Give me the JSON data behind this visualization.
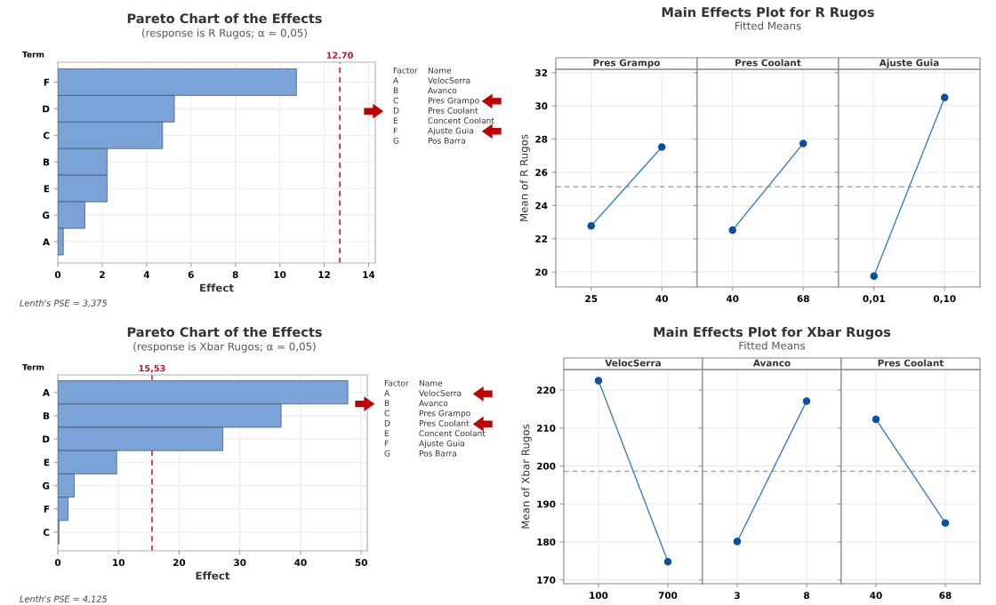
{
  "chart_data": [
    {
      "type": "bar",
      "orientation": "horizontal",
      "title": "Pareto Chart of the Effects",
      "subtitle": "(response is R Rugos; α = 0,05)",
      "xlabel": "Effect",
      "ylabel": "Term",
      "categories": [
        "F",
        "D",
        "C",
        "B",
        "E",
        "G",
        "A"
      ],
      "values": [
        10.75,
        5.25,
        4.72,
        2.22,
        2.22,
        1.22,
        0.25
      ],
      "color": "#7ba3d8",
      "xlim": [
        0,
        14.3
      ],
      "xticks": [
        0,
        2,
        4,
        6,
        8,
        10,
        12,
        14
      ],
      "grid": true,
      "ref_lines": [
        {
          "axis": "x",
          "value": 12.7,
          "label": "12.70",
          "color": "#c8102e",
          "line_style": "dashed"
        }
      ],
      "annotations": [
        "Factor",
        "Name",
        "A",
        "VelocSerra",
        "B",
        "Avanco",
        "C",
        "Pres Grampo",
        "D",
        "Pres Coolant",
        "E",
        "Concent Coolant",
        "F",
        "Ajuste Guia",
        "G",
        "Pos Barra",
        "Lenth's PSE = 3,375"
      ]
    },
    {
      "type": "other",
      "title": "Main Effects Plot for R Rugos",
      "subtitle": "Fitted Means"
    },
    {
      "type": "line",
      "title": "Pres Grampo",
      "ylabel": "Mean of R Rugos",
      "categories": [
        "25",
        "40"
      ],
      "series": [
        {
          "color": "#3d7cc4",
          "values": [
            22.78,
            27.52
          ]
        }
      ],
      "marker": "circle",
      "grid": true,
      "ylim": [
        19.1,
        32.2
      ],
      "yticks": [
        20,
        22,
        24,
        26,
        28,
        30,
        32
      ],
      "ref_lines": [
        {
          "axis": "y",
          "value": 25.13,
          "color": "#a8a8a8",
          "line_style": "dashed"
        }
      ]
    },
    {
      "type": "line",
      "title": "Pres Coolant",
      "categories": [
        "40",
        "68"
      ],
      "tick_labels": "x",
      "series": [
        {
          "color": "#3d7cc4",
          "values": [
            22.52,
            27.74
          ]
        }
      ],
      "marker": "circle",
      "grid": true,
      "ylim": [
        19.1,
        32.2
      ],
      "yticks": [
        20,
        22,
        24,
        26,
        28,
        30,
        32
      ],
      "ref_lines": [
        {
          "axis": "y",
          "value": 25.13,
          "color": "#a8a8a8",
          "line_style": "dashed"
        }
      ]
    },
    {
      "type": "line",
      "title": "Ajuste Guia",
      "categories": [
        "0,01",
        "0,10"
      ],
      "tick_labels": "x",
      "series": [
        {
          "color": "#3d7cc4",
          "values": [
            19.76,
            30.5
          ]
        }
      ],
      "marker": "circle",
      "grid": true,
      "ylim": [
        19.1,
        32.2
      ],
      "yticks": [
        20,
        22,
        24,
        26,
        28,
        30,
        32
      ],
      "ref_lines": [
        {
          "axis": "y",
          "value": 25.13,
          "color": "#a8a8a8",
          "line_style": "dashed"
        }
      ]
    },
    {
      "type": "bar",
      "orientation": "horizontal",
      "title": "Pareto Chart of the Effects",
      "subtitle": "(response is Xbar Rugos; α = 0,05)",
      "xlabel": "Effect",
      "ylabel": "Term",
      "categories": [
        "A",
        "B",
        "D",
        "E",
        "G",
        "F",
        "C"
      ],
      "values": [
        47.8,
        36.8,
        27.2,
        9.7,
        2.7,
        1.7,
        0.2
      ],
      "color": "#7ba3d8",
      "xlim": [
        0,
        51
      ],
      "xticks": [
        0,
        10,
        20,
        30,
        40,
        50
      ],
      "grid": true,
      "ref_lines": [
        {
          "axis": "x",
          "value": 15.53,
          "label": "15,53",
          "color": "#c8102e",
          "line_style": "dashed"
        }
      ],
      "annotations": [
        "Factor",
        "Name",
        "A",
        "VelocSerra",
        "B",
        "Avanco",
        "C",
        "Pres Grampo",
        "D",
        "Pres Coolant",
        "E",
        "Concent Coolant",
        "F",
        "Ajuste Guia",
        "G",
        "Pos Barra",
        "Lenth's PSE = 4,125"
      ]
    },
    {
      "type": "other",
      "title": "Main Effects Plot for Xbar Rugos",
      "subtitle": "Fitted Means"
    },
    {
      "type": "line",
      "title": "VelocSerra",
      "ylabel": "Mean of Xbar Rugos",
      "categories": [
        "100",
        "700"
      ],
      "series": [
        {
          "color": "#3d7cc4",
          "values": [
            222.5,
            174.8
          ]
        }
      ],
      "marker": "circle",
      "grid": true,
      "ylim": [
        169.0,
        225.4
      ],
      "yticks": [
        170,
        180,
        190,
        200,
        210,
        220
      ],
      "ref_lines": [
        {
          "axis": "y",
          "value": 198.6,
          "color": "#a8a8a8",
          "line_style": "dashed"
        }
      ]
    },
    {
      "type": "line",
      "title": "Avanco",
      "categories": [
        "3",
        "8"
      ],
      "tick_labels": "x",
      "series": [
        {
          "color": "#3d7cc4",
          "values": [
            180.1,
            217.1
          ]
        }
      ],
      "marker": "circle",
      "grid": true,
      "ylim": [
        169.0,
        225.4
      ],
      "yticks": [
        170,
        180,
        190,
        200,
        210,
        220
      ],
      "ref_lines": [
        {
          "axis": "y",
          "value": 198.6,
          "color": "#a8a8a8",
          "line_style": "dashed"
        }
      ]
    },
    {
      "type": "line",
      "title": "Pres Coolant",
      "categories": [
        "40",
        "68"
      ],
      "tick_labels": "x",
      "series": [
        {
          "color": "#3d7cc4",
          "values": [
            212.3,
            185.0
          ]
        }
      ],
      "marker": "circle",
      "grid": true,
      "ylim": [
        169.0,
        225.4
      ],
      "yticks": [
        170,
        180,
        190,
        200,
        210,
        220
      ],
      "ref_lines": [
        {
          "axis": "y",
          "value": 198.6,
          "color": "#a8a8a8",
          "line_style": "dashed"
        }
      ]
    }
  ]
}
